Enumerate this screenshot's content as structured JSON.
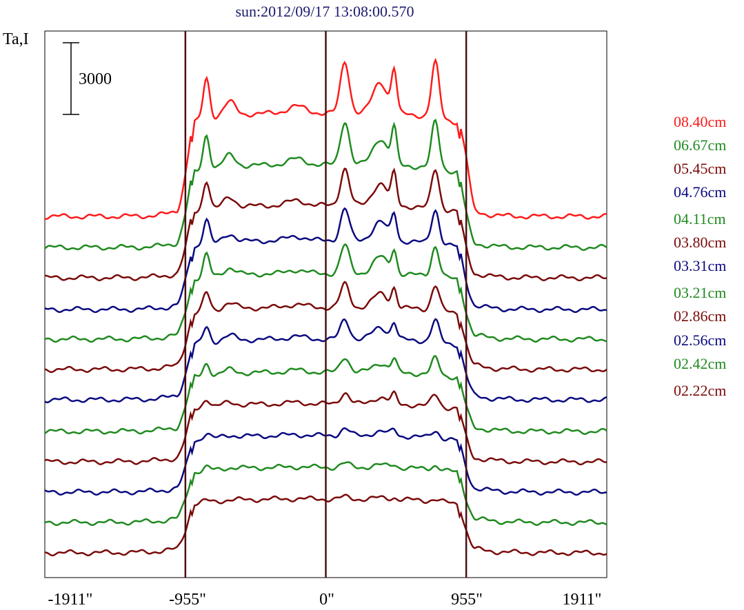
{
  "chart_data": {
    "type": "line",
    "title": "sun:2012/09/17 13:08:00.570",
    "ylabel": "Ta,I",
    "scale_bar_label": "3000",
    "scale_bar_value": 3000,
    "x_tick_labels": [
      "-1911\"",
      "-955\"",
      "0\"",
      "955\"",
      "1911\""
    ],
    "x_ticks": [
      -1911,
      -955,
      0,
      955,
      1911
    ],
    "xlim": [
      -1911,
      1911
    ],
    "vertical_lines": [
      -955,
      0,
      955
    ],
    "grid": false,
    "legend_position": "right",
    "series": [
      {
        "name": "08.40cm",
        "color": "#ff1a1a"
      },
      {
        "name": "06.67cm",
        "color": "#1f8a1f"
      },
      {
        "name": "05.45cm",
        "color": "#7a0a0a"
      },
      {
        "name": "04.76cm",
        "color": "#0a0a80"
      },
      {
        "name": "04.11cm",
        "color": "#1f8a1f"
      },
      {
        "name": "03.80cm",
        "color": "#7a0a0a"
      },
      {
        "name": "03.31cm",
        "color": "#0a0a80"
      },
      {
        "name": "03.21cm",
        "color": "#1f8a1f"
      },
      {
        "name": "02.86cm",
        "color": "#7a0a0a"
      },
      {
        "name": "02.56cm",
        "color": "#0a0a80"
      },
      {
        "name": "02.42cm",
        "color": "#1f8a1f"
      },
      {
        "name": "02.22cm",
        "color": "#7a0a0a"
      }
    ]
  }
}
